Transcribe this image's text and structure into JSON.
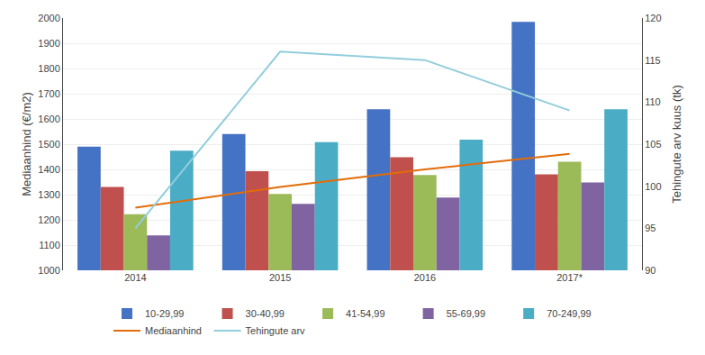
{
  "chart_data": {
    "type": "bar",
    "categories": [
      "2014",
      "2015",
      "2016",
      "2017*"
    ],
    "series": [
      {
        "name": "10-29,99",
        "color": "#4472C4",
        "values": [
          1490,
          1540,
          1638,
          1985
        ]
      },
      {
        "name": "30-40,99",
        "color": "#C0504D",
        "values": [
          1330,
          1393,
          1448,
          1380
        ]
      },
      {
        "name": "41-54,99",
        "color": "#9BBB59",
        "values": [
          1222,
          1303,
          1378,
          1430
        ]
      },
      {
        "name": "55-69,99",
        "color": "#8064A2",
        "values": [
          1138,
          1263,
          1288,
          1348
        ]
      },
      {
        "name": "70-249,99",
        "color": "#4BACC6",
        "values": [
          1474,
          1508,
          1518,
          1638
        ]
      },
      {
        "name": "Mediaanhind",
        "type": "line",
        "color": "#E36C09",
        "values": [
          1248,
          1330,
          1400,
          1462
        ]
      },
      {
        "name": "Tehingute arv",
        "type": "line",
        "color": "#92CDDC",
        "axis": "y2",
        "values": [
          95,
          116,
          115,
          109
        ]
      }
    ],
    "ylabel": "Mediaanhind (€/m2)",
    "y2label": "Tehingute arv kuus (tk)",
    "ylim": [
      1000,
      2000
    ],
    "yticks": [
      1000,
      1100,
      1200,
      1300,
      1400,
      1500,
      1600,
      1700,
      1800,
      1900,
      2000
    ],
    "y2lim": [
      90,
      120
    ],
    "y2ticks": [
      90,
      95,
      100,
      105,
      110,
      115,
      120
    ],
    "grid": true,
    "legend": "bottom"
  }
}
